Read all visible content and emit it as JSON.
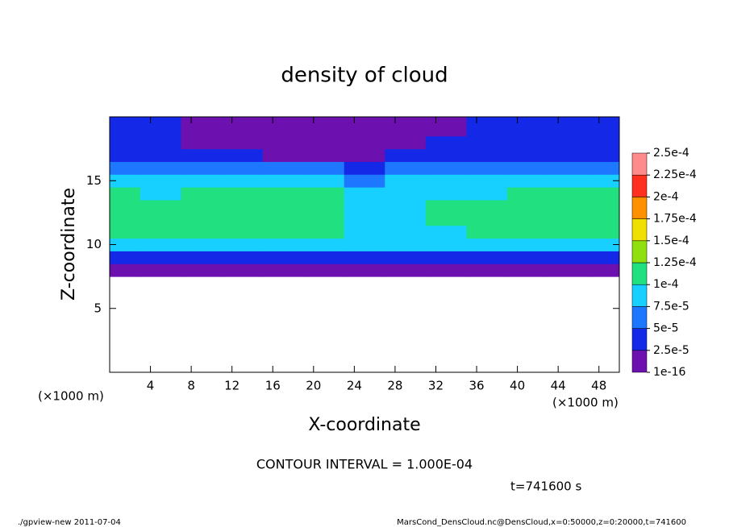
{
  "chart_data": {
    "type": "heatmap",
    "title": "density of cloud",
    "xlabel": "X-coordinate",
    "ylabel": "Z-coordinate",
    "x_scale_label": "(×1000 m)",
    "y_scale_label": "(×1000 m)",
    "contour_interval": "CONTOUR INTERVAL = 1.000E-04",
    "time_label": "t=741600 s",
    "footer_left": "./gpview-new  2011-07-04",
    "footer_right": "MarsCond_DensCloud.nc@DensCloud,x=0:50000,z=0:20000,t=741600",
    "xlim": [
      0,
      50
    ],
    "ylim": [
      0,
      20
    ],
    "xticks": [
      4,
      8,
      12,
      16,
      20,
      24,
      28,
      32,
      36,
      40,
      44,
      48
    ],
    "yticks": [
      5,
      10,
      15
    ],
    "x": [
      1,
      5,
      9,
      13,
      17,
      21,
      25,
      29,
      33,
      37,
      41,
      45,
      49
    ],
    "z": [
      8,
      9,
      10,
      11,
      12,
      13,
      14,
      15,
      16,
      17,
      18,
      19,
      20
    ],
    "values": [
      [
        1.5e-05,
        1.5e-05,
        1.5e-05,
        1.5e-05,
        1.5e-05,
        1.5e-05,
        1.5e-05,
        1.5e-05,
        1.5e-05,
        1.5e-05,
        1.5e-05,
        1.5e-05,
        1.5e-05
      ],
      [
        3.5e-05,
        3.5e-05,
        3.5e-05,
        3.5e-05,
        3.5e-05,
        3.5e-05,
        3.5e-05,
        3.5e-05,
        3.5e-05,
        3.5e-05,
        3.5e-05,
        3.5e-05,
        3.5e-05
      ],
      [
        8.5e-05,
        8.5e-05,
        8.5e-05,
        8.5e-05,
        8.5e-05,
        8.5e-05,
        8.5e-05,
        8.5e-05,
        8.5e-05,
        8.5e-05,
        8.5e-05,
        8.5e-05,
        8.5e-05
      ],
      [
        0.000102,
        0.000105,
        0.00011,
        0.00011,
        0.00011,
        0.00011,
        9.5e-05,
        9.8e-05,
        9.6e-05,
        0.000105,
        0.000105,
        0.000105,
        0.000105
      ],
      [
        0.000105,
        0.000105,
        0.000115,
        0.00012,
        0.00012,
        0.000115,
        9e-05,
        9.8e-05,
        0.000102,
        0.000108,
        0.000112,
        0.00011,
        0.000108
      ],
      [
        0.000105,
        0.0001,
        0.000118,
        0.00012,
        0.000122,
        0.000115,
        8.5e-05,
        9.5e-05,
        0.0001,
        0.000108,
        0.000112,
        0.00011,
        0.00011
      ],
      [
        0.000103,
        8.8e-05,
        0.00011,
        0.000115,
        0.000115,
        0.000108,
        8e-05,
        9e-05,
        9e-05,
        9.5e-05,
        0.000102,
        0.0001,
        0.000102
      ],
      [
        9e-05,
        7.5e-05,
        8.5e-05,
        9.5e-05,
        9.5e-05,
        8.5e-05,
        7e-05,
        7.5e-05,
        7.5e-05,
        8e-05,
        8.5e-05,
        8.5e-05,
        9e-05
      ],
      [
        6e-05,
        5.5e-05,
        6e-05,
        6e-05,
        5.5e-05,
        5e-05,
        4.5e-05,
        5e-05,
        5.5e-05,
        6e-05,
        6e-05,
        6e-05,
        6e-05
      ],
      [
        4.5e-05,
        4e-05,
        3.5e-05,
        3e-05,
        2e-05,
        1.5e-05,
        2e-05,
        3e-05,
        4e-05,
        4e-05,
        4.5e-05,
        4.5e-05,
        4.5e-05
      ],
      [
        3.5e-05,
        3e-05,
        2e-05,
        1.5e-05,
        1e-05,
        1e-05,
        1e-05,
        1.5e-05,
        3e-05,
        3e-05,
        3e-05,
        3e-05,
        3e-05
      ],
      [
        3e-05,
        2.5e-05,
        1.5e-05,
        1e-05,
        5e-06,
        5e-06,
        5e-06,
        1e-05,
        2e-05,
        2.5e-05,
        2.5e-05,
        2.5e-05,
        3e-05
      ],
      [
        3e-05,
        3e-05,
        2e-05,
        1e-05,
        5e-06,
        5e-06,
        1e-05,
        1.5e-05,
        2e-05,
        2.5e-05,
        2.5e-05,
        2.5e-05,
        3e-05
      ]
    ],
    "levels": [
      {
        "value": 1e-16,
        "label": "1e-16"
      },
      {
        "value": 2.5e-05,
        "label": "2.5e-5"
      },
      {
        "value": 5e-05,
        "label": "5e-5"
      },
      {
        "value": 7.5e-05,
        "label": "7.5e-5"
      },
      {
        "value": 0.0001,
        "label": "1e-4"
      },
      {
        "value": 0.000125,
        "label": "1.25e-4"
      },
      {
        "value": 0.00015,
        "label": "1.5e-4"
      },
      {
        "value": 0.000175,
        "label": "1.75e-4"
      },
      {
        "value": 0.0002,
        "label": "2e-4"
      },
      {
        "value": 0.000225,
        "label": "2.25e-4"
      },
      {
        "value": 0.00025,
        "label": "2.5e-4"
      }
    ],
    "colors": [
      "#6c10b0",
      "#1428e8",
      "#1e78ff",
      "#18d0ff",
      "#20e080",
      "#90e010",
      "#f0e000",
      "#ff9000",
      "#ff3020",
      "#ff8c8c"
    ]
  }
}
